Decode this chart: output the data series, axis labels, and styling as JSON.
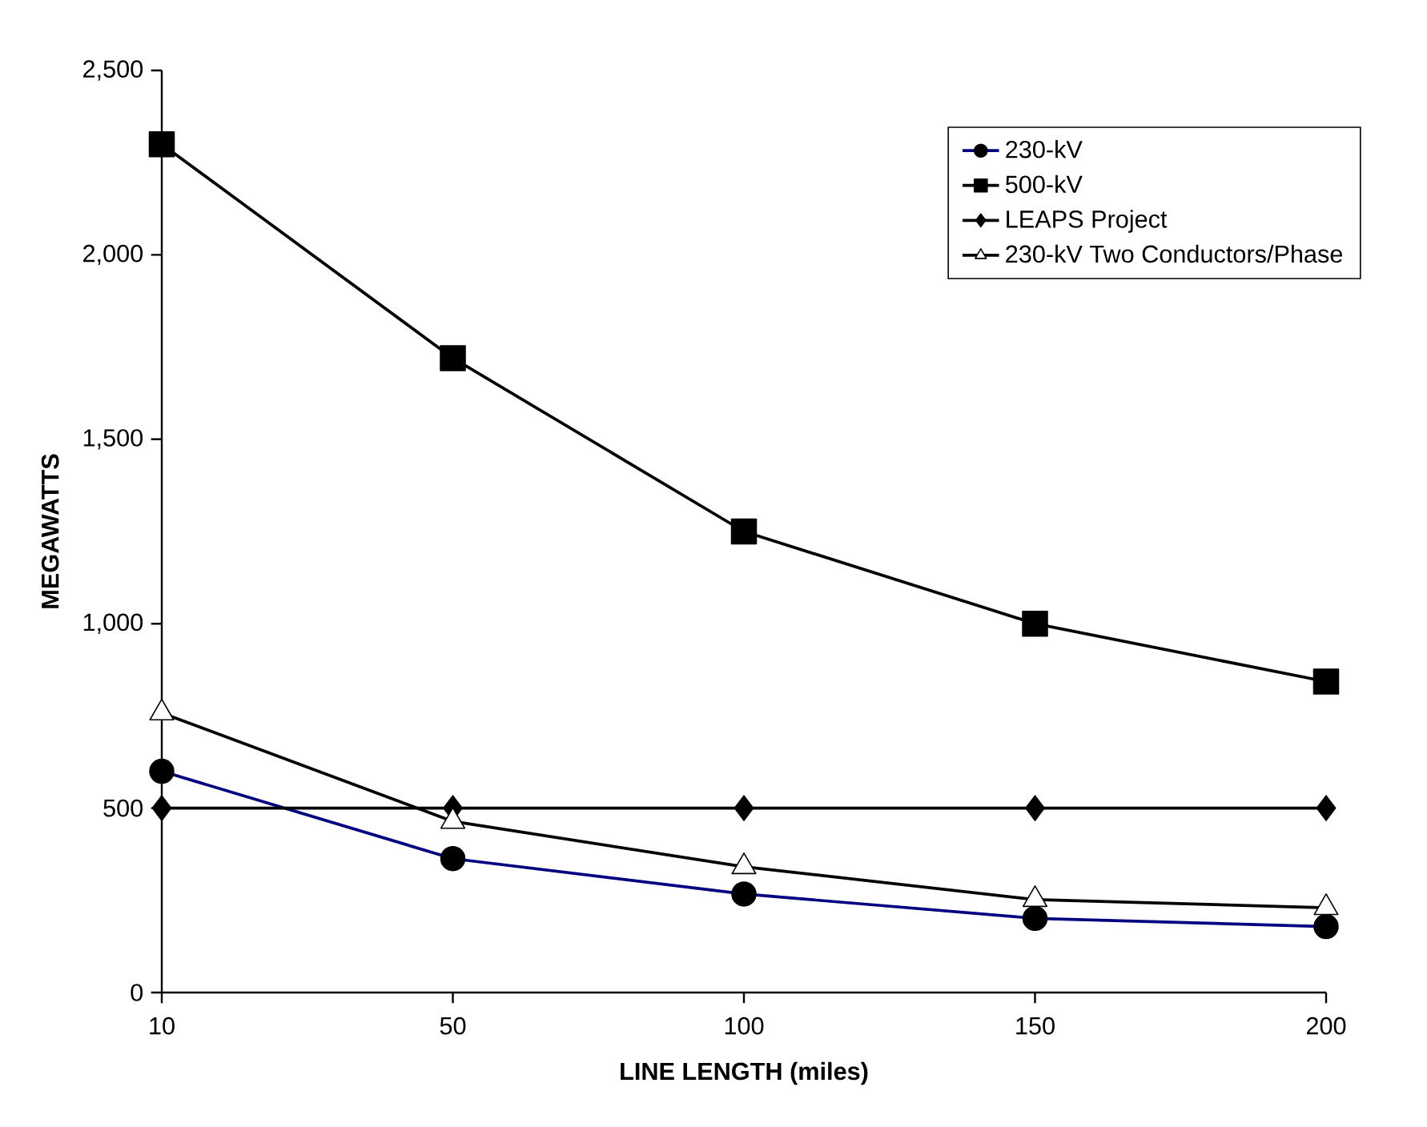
{
  "chart_data": {
    "type": "line",
    "xlabel": "LINE LENGTH (miles)",
    "ylabel": "MEGAWATTS",
    "categories": [
      "10",
      "50",
      "100",
      "150",
      "200"
    ],
    "series": [
      {
        "name": "230-kV",
        "color": "#000080",
        "marker": "circle",
        "values": [
          600,
          363,
          267,
          201,
          179
        ]
      },
      {
        "name": "500-kV",
        "color": "#000000",
        "marker": "square",
        "values": [
          2300,
          1720,
          1250,
          1000,
          843
        ]
      },
      {
        "name": "LEAPS Project",
        "color": "#000000",
        "marker": "diamond",
        "values": [
          500,
          500,
          500,
          500,
          500
        ]
      },
      {
        "name": "230-kV Two Conductors/Phase",
        "color": "#000000",
        "marker": "triangle",
        "values": [
          758,
          464,
          341,
          252,
          230
        ]
      }
    ],
    "ylim": [
      0,
      2500
    ],
    "yticks": [
      {
        "value": 0,
        "label": "0"
      },
      {
        "value": 500,
        "label": "500"
      },
      {
        "value": 1000,
        "label": "1,000"
      },
      {
        "value": 1500,
        "label": "1,500"
      },
      {
        "value": 2000,
        "label": "2,000"
      },
      {
        "value": 2500,
        "label": "2,500"
      }
    ],
    "grid": false,
    "legend": "top right",
    "line_style": "solid"
  }
}
